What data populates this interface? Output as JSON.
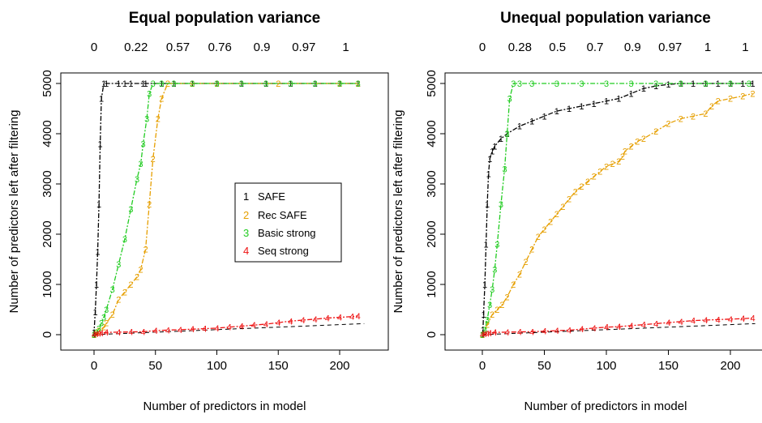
{
  "chart_data": [
    {
      "type": "line",
      "title": "Equal population variance",
      "xlabel": "Number of predictors in model",
      "ylabel": "Number of predictors left after filtering",
      "xlim": [
        -5,
        225
      ],
      "ylim": [
        -100,
        5250
      ],
      "x_ticks": [
        "0",
        "50",
        "100",
        "150",
        "200"
      ],
      "y_ticks": [
        "0",
        "1000",
        "2000",
        "3000",
        "4000",
        "5000"
      ],
      "top_axis_labels": [
        "0",
        "0.22",
        "0.57",
        "0.76",
        "0.9",
        "0.97",
        "1"
      ],
      "reference_line": "dashed diagonal y = x",
      "legend": {
        "position": "center-right",
        "entries": [
          {
            "symbol": "1",
            "label": "SAFE",
            "color": "#000000"
          },
          {
            "symbol": "2",
            "label": "Rec SAFE",
            "color": "#e69f00"
          },
          {
            "symbol": "3",
            "label": "Basic strong",
            "color": "#22cc22"
          },
          {
            "symbol": "4",
            "label": "Seq strong",
            "color": "#ee1111"
          }
        ]
      },
      "series": [
        {
          "name": "SAFE",
          "symbol": "1",
          "color": "#000000",
          "x": [
            0,
            0,
            1,
            2,
            3,
            4,
            5,
            6,
            8,
            10,
            20,
            25,
            30,
            40,
            42,
            55,
            65,
            80,
            100,
            120,
            140,
            160,
            180,
            200,
            215
          ],
          "y": [
            0,
            50,
            450,
            1000,
            1650,
            2600,
            3800,
            4700,
            5000,
            5000,
            5000,
            5000,
            5000,
            5000,
            5000,
            5000,
            5000,
            5000,
            5000,
            5000,
            5000,
            5000,
            5000,
            5000,
            5000
          ]
        },
        {
          "name": "Rec SAFE",
          "symbol": "2",
          "color": "#e69f00",
          "x": [
            0,
            2,
            4,
            8,
            10,
            15,
            20,
            25,
            30,
            35,
            38,
            42,
            45,
            48,
            52,
            55,
            60,
            80,
            100,
            150,
            200,
            215
          ],
          "y": [
            0,
            40,
            80,
            150,
            230,
            400,
            700,
            850,
            1000,
            1150,
            1300,
            1700,
            2600,
            3500,
            4300,
            4700,
            5000,
            5000,
            5000,
            5000,
            5000,
            5000
          ]
        },
        {
          "name": "Basic strong",
          "symbol": "3",
          "color": "#22cc22",
          "x": [
            0,
            2,
            4,
            6,
            8,
            10,
            15,
            20,
            25,
            30,
            35,
            38,
            40,
            43,
            45,
            48,
            55,
            65,
            80,
            100,
            120,
            140,
            160,
            180,
            200,
            215
          ],
          "y": [
            0,
            50,
            120,
            230,
            350,
            500,
            900,
            1400,
            1900,
            2500,
            3100,
            3400,
            3800,
            4300,
            4800,
            5000,
            5000,
            5000,
            5000,
            5000,
            5000,
            5000,
            5000,
            5000,
            5000,
            5000
          ]
        },
        {
          "name": "Seq strong",
          "symbol": "4",
          "color": "#ee1111",
          "x": [
            0,
            2,
            4,
            6,
            10,
            20,
            30,
            40,
            50,
            60,
            70,
            80,
            90,
            100,
            110,
            120,
            130,
            140,
            150,
            160,
            170,
            180,
            190,
            200,
            210,
            215
          ],
          "y": [
            5,
            15,
            25,
            35,
            45,
            50,
            55,
            60,
            80,
            90,
            100,
            110,
            120,
            130,
            150,
            170,
            190,
            210,
            240,
            270,
            290,
            310,
            330,
            345,
            360,
            375
          ]
        }
      ]
    },
    {
      "type": "line",
      "title": "Unequal population variance",
      "xlabel": "Number of predictors in model",
      "ylabel": "Number of predictors left after filtering",
      "xlim": [
        -5,
        225
      ],
      "ylim": [
        -100,
        5250
      ],
      "x_ticks": [
        "0",
        "50",
        "100",
        "150",
        "200"
      ],
      "y_ticks": [
        "0",
        "1000",
        "2000",
        "3000",
        "4000",
        "5000"
      ],
      "top_axis_labels": [
        "0",
        "0.28",
        "0.5",
        "0.7",
        "0.9",
        "0.97",
        "1",
        "1"
      ],
      "reference_line": "dashed diagonal y = x",
      "series": [
        {
          "name": "SAFE",
          "symbol": "1",
          "color": "#000000",
          "x": [
            0,
            0.5,
            1,
            2,
            3,
            4,
            5,
            6,
            8,
            10,
            15,
            20,
            30,
            40,
            50,
            60,
            70,
            80,
            90,
            100,
            110,
            120,
            130,
            140,
            150,
            160,
            170,
            180,
            190,
            200,
            210,
            218
          ],
          "y": [
            0,
            100,
            400,
            1000,
            1800,
            2600,
            3200,
            3500,
            3650,
            3750,
            3900,
            4000,
            4150,
            4250,
            4350,
            4450,
            4500,
            4550,
            4600,
            4650,
            4700,
            4800,
            4900,
            4950,
            4980,
            5000,
            5000,
            5000,
            5000,
            5000,
            5000,
            5000
          ]
        },
        {
          "name": "Rec SAFE",
          "symbol": "2",
          "color": "#e69f00",
          "x": [
            0,
            4,
            8,
            12,
            16,
            20,
            25,
            30,
            35,
            40,
            45,
            50,
            55,
            60,
            65,
            70,
            75,
            80,
            85,
            90,
            95,
            100,
            105,
            110,
            113,
            115,
            120,
            125,
            130,
            140,
            150,
            160,
            170,
            180,
            185,
            190,
            200,
            210,
            218
          ],
          "y": [
            0,
            200,
            400,
            500,
            600,
            750,
            1000,
            1200,
            1450,
            1700,
            1950,
            2100,
            2250,
            2400,
            2550,
            2700,
            2850,
            2950,
            3050,
            3150,
            3250,
            3350,
            3400,
            3450,
            3550,
            3650,
            3750,
            3850,
            3900,
            4050,
            4200,
            4300,
            4350,
            4400,
            4550,
            4650,
            4700,
            4750,
            4800
          ]
        },
        {
          "name": "Basic strong",
          "symbol": "3",
          "color": "#22cc22",
          "x": [
            0,
            2,
            4,
            6,
            8,
            10,
            12,
            15,
            18,
            20,
            22,
            25,
            30,
            40,
            60,
            80,
            100,
            120,
            140,
            160,
            180,
            200,
            215
          ],
          "y": [
            0,
            100,
            300,
            600,
            900,
            1300,
            1800,
            2600,
            3300,
            4000,
            4700,
            5000,
            5000,
            5000,
            5000,
            5000,
            5000,
            5000,
            5000,
            5000,
            5000,
            5000,
            5000
          ]
        },
        {
          "name": "Seq strong",
          "symbol": "4",
          "color": "#ee1111",
          "x": [
            0,
            2,
            4,
            6,
            10,
            20,
            30,
            40,
            50,
            60,
            70,
            80,
            90,
            100,
            110,
            120,
            130,
            140,
            150,
            160,
            170,
            180,
            190,
            200,
            210,
            218
          ],
          "y": [
            5,
            15,
            25,
            35,
            45,
            50,
            55,
            60,
            70,
            80,
            90,
            110,
            130,
            150,
            160,
            180,
            200,
            220,
            240,
            260,
            280,
            290,
            300,
            310,
            320,
            330
          ]
        }
      ]
    }
  ]
}
